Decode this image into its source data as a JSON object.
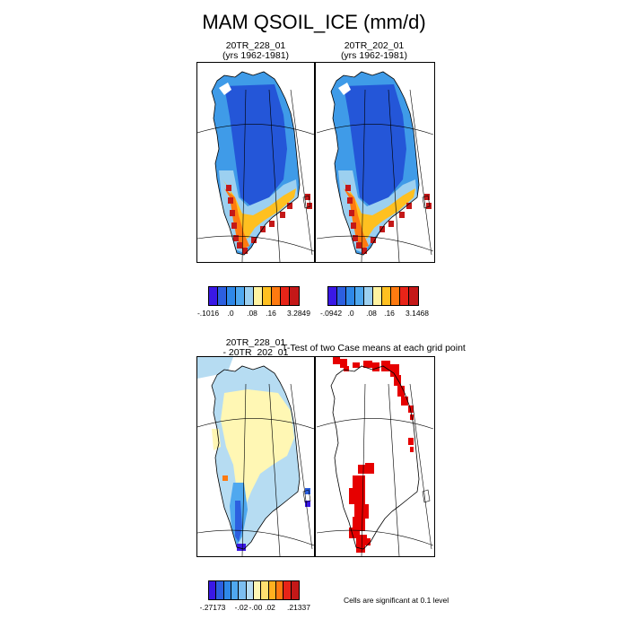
{
  "title": "MAM QSOIL_ICE (mm/d)",
  "panels": {
    "case1": {
      "line1": "20TR_228_01",
      "line2": "(yrs 1962-1981)"
    },
    "case2": {
      "line1": "20TR_202_01",
      "line2": "(yrs 1962-1981)"
    },
    "diff": {
      "line1": "20TR_228_01",
      "line2": "- 20TR_202_01"
    },
    "ttest": {
      "title": "T-Test of two Case means at each grid point"
    }
  },
  "colorbars": {
    "case1": {
      "colors": [
        "#3a18e6",
        "#2c5fe0",
        "#2e88e8",
        "#4fa8ef",
        "#9cd0f0",
        "#fff3a0",
        "#ffc020",
        "#ff7a10",
        "#e82418",
        "#c41818"
      ],
      "labels": [
        "-.1016",
        ".0",
        ".08",
        ".16",
        "3.2849"
      ]
    },
    "case2": {
      "colors": [
        "#3a18e6",
        "#2c5fe0",
        "#2e88e8",
        "#4fa8ef",
        "#9cd0f0",
        "#fff3a0",
        "#ffc020",
        "#ff7a10",
        "#e82418",
        "#c41818"
      ],
      "labels": [
        "-.0942",
        ".0",
        ".08",
        ".16",
        "3.1468"
      ]
    },
    "diff": {
      "colors": [
        "#3a18e6",
        "#2c5fe0",
        "#2e88e8",
        "#4fa8ef",
        "#7cbef0",
        "#b6dcf2",
        "#fff7b4",
        "#ffe070",
        "#ffb020",
        "#ff7a10",
        "#e82418",
        "#c41818"
      ],
      "labels": [
        "-.27173",
        "-.02",
        "-.00",
        ".02",
        ".21337"
      ]
    }
  },
  "ttest_note": "Cells are significant at 0.1 level",
  "colors": {
    "significant": "#e60000",
    "land_outline": "#000000"
  }
}
